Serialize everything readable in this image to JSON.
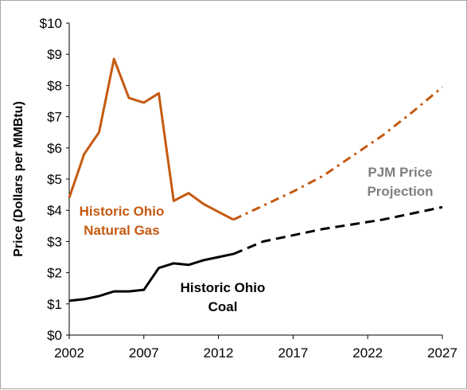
{
  "chart_data": {
    "type": "line",
    "title": "",
    "xlabel": "",
    "ylabel": "Price  (Dollars per MMBtu)",
    "xlim": [
      2002,
      2027
    ],
    "ylim": [
      0,
      10
    ],
    "x_ticks": [
      "2002",
      "2007",
      "2012",
      "2017",
      "2022",
      "2027"
    ],
    "y_ticks": [
      "$0",
      "$1",
      "$2",
      "$3",
      "$4",
      "$5",
      "$6",
      "$7",
      "$8",
      "$9",
      "$10"
    ],
    "grid": false,
    "series": [
      {
        "key": "gas_hist",
        "color": "#c55a11",
        "style": "solid",
        "x": [
          2002,
          2003,
          2004,
          2005,
          2006,
          2007,
          2008,
          2009,
          2010,
          2011,
          2012,
          2013
        ],
        "y": [
          4.4,
          5.8,
          6.5,
          8.85,
          7.6,
          7.45,
          7.75,
          4.3,
          4.55,
          4.2,
          3.95,
          3.7
        ]
      },
      {
        "key": "gas_proj",
        "color": "#c55a11",
        "style": "dashdot",
        "x": [
          2013,
          2015,
          2017,
          2019,
          2021,
          2023,
          2025,
          2027
        ],
        "y": [
          3.7,
          4.15,
          4.6,
          5.1,
          5.75,
          6.4,
          7.15,
          7.95
        ]
      },
      {
        "key": "coal_hist",
        "color": "#000000",
        "style": "solid",
        "x": [
          2002,
          2003,
          2004,
          2005,
          2006,
          2007,
          2008,
          2009,
          2010,
          2011,
          2012,
          2013
        ],
        "y": [
          1.1,
          1.15,
          1.25,
          1.4,
          1.4,
          1.45,
          2.15,
          2.3,
          2.25,
          2.4,
          2.5,
          2.6
        ]
      },
      {
        "key": "coal_proj",
        "color": "#000000",
        "style": "dashed",
        "x": [
          2013,
          2015,
          2017,
          2019,
          2021,
          2023,
          2025,
          2027
        ],
        "y": [
          2.6,
          3.0,
          3.2,
          3.4,
          3.55,
          3.7,
          3.9,
          4.1
        ]
      }
    ],
    "annotations": [
      {
        "key": "gas_label",
        "lines": [
          "Historic Ohio",
          "Natural Gas"
        ],
        "color": "#c55a11"
      },
      {
        "key": "coal_label",
        "lines": [
          "Historic Ohio",
          "Coal"
        ],
        "color": "#000000"
      },
      {
        "key": "pjm_label",
        "lines": [
          "PJM Price",
          "Projection"
        ],
        "color": "#7f7f7f"
      }
    ]
  }
}
